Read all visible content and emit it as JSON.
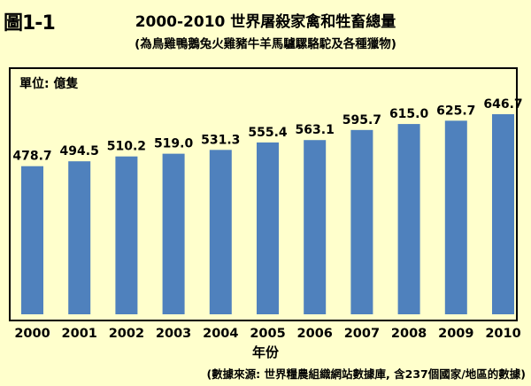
{
  "figure": {
    "label": "圖1-1",
    "title": "2000-2010  世界屠殺家禽和牲畜總量",
    "subtitle": "(為鳥雞鴨鵝兔火雞豬牛羊馬驢騾駱駝及各種獵物)",
    "source": "(數據來源: 世界糧農組織網站數據庫, 含237個國家/地區的數據)"
  },
  "chart_data": {
    "type": "bar",
    "unit_label": "單位: 億隻",
    "xlabel": "年份",
    "ylabel": "",
    "categories": [
      "2000",
      "2001",
      "2002",
      "2003",
      "2004",
      "2005",
      "2006",
      "2007",
      "2008",
      "2009",
      "2010"
    ],
    "values": [
      478.7,
      494.5,
      510.2,
      519.0,
      531.3,
      555.4,
      563.1,
      595.7,
      615.0,
      625.7,
      646.7
    ],
    "value_labels": [
      "478.7",
      "494.5",
      "510.2",
      "519.0",
      "531.3",
      "555.4",
      "563.1",
      "595.7",
      "615.0",
      "625.7",
      "646.7"
    ],
    "bar_color": "#4f81bd",
    "grid": false,
    "legend": "none"
  }
}
